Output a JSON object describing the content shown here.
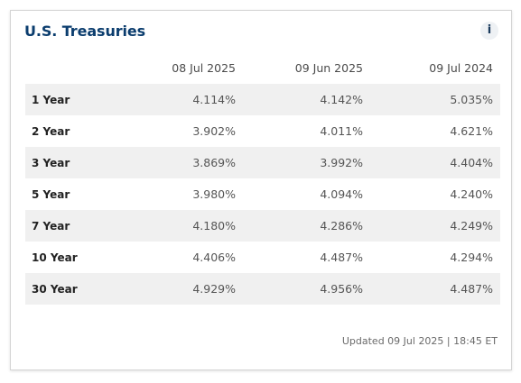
{
  "widget": {
    "title": "U.S. Treasuries",
    "info_label": "i",
    "updated": "Updated 09 Jul 2025 | 18:45 ET"
  },
  "table": {
    "columns": [
      "08 Jul 2025",
      "09 Jun 2025",
      "09 Jul 2024"
    ],
    "rows": [
      {
        "tenor": "1 Year",
        "values": [
          "4.114%",
          "4.142%",
          "5.035%"
        ]
      },
      {
        "tenor": "2 Year",
        "values": [
          "3.902%",
          "4.011%",
          "4.621%"
        ]
      },
      {
        "tenor": "3 Year",
        "values": [
          "3.869%",
          "3.992%",
          "4.404%"
        ]
      },
      {
        "tenor": "5 Year",
        "values": [
          "3.980%",
          "4.094%",
          "4.240%"
        ]
      },
      {
        "tenor": "7 Year",
        "values": [
          "4.180%",
          "4.286%",
          "4.249%"
        ]
      },
      {
        "tenor": "10 Year",
        "values": [
          "4.406%",
          "4.487%",
          "4.294%"
        ]
      },
      {
        "tenor": "30 Year",
        "values": [
          "4.929%",
          "4.956%",
          "4.487%"
        ]
      }
    ]
  }
}
